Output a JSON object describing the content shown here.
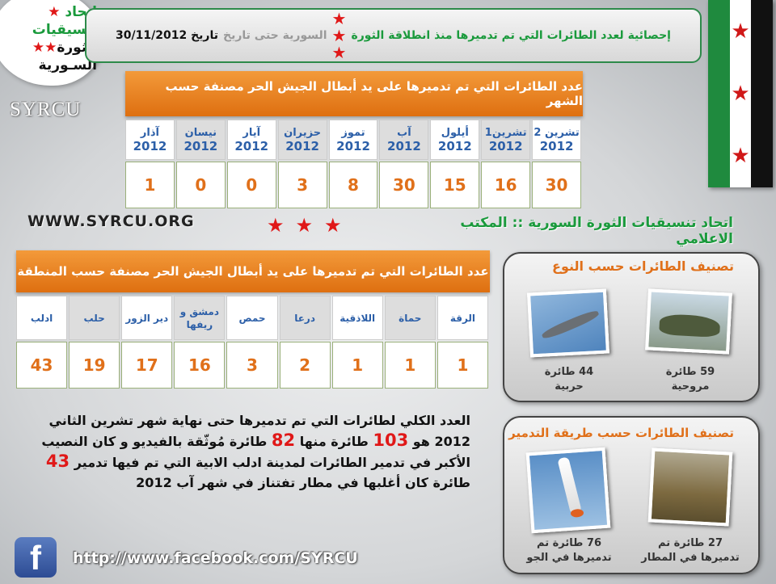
{
  "logo": {
    "line1": "اتحاد",
    "line2": "تنسيقيات",
    "line3": "الثورة",
    "line4": "السـورية",
    "latin": "SYRCU"
  },
  "banner": {
    "part1": "إحصائية لعدد الطائرات التي تم تدميرها منذ انطلاقة الثورة",
    "part2": "السورية حتى تاريخ",
    "part3": "تاريخ 30/11/2012"
  },
  "monthly": {
    "title": "عدد الطائرات التي تم تدميرها على يد أبطال الجيش الحر مصنفة حسب الشهر",
    "columns": [
      {
        "month": "آذار",
        "year": "2012",
        "value": "1"
      },
      {
        "month": "نيسان",
        "year": "2012",
        "value": "0"
      },
      {
        "month": "آيار",
        "year": "2012",
        "value": "0"
      },
      {
        "month": "حزيران",
        "year": "2012",
        "value": "3"
      },
      {
        "month": "تموز",
        "year": "2012",
        "value": "8"
      },
      {
        "month": "آب",
        "year": "2012",
        "value": "30"
      },
      {
        "month": "أيلول",
        "year": "2012",
        "value": "15"
      },
      {
        "month": "تشرين1",
        "year": "2012",
        "value": "16"
      },
      {
        "month": "تشرين 2",
        "year": "2012",
        "value": "30"
      }
    ]
  },
  "website": "WWW.SYRCU.ORG",
  "office": "اتحاد تنسيقيات الثورة السورية :: المكتب الاعلامي",
  "regional": {
    "title": "عدد الطائرات التي تم تدميرها على يد أبطال الجيش الحر مصنفة حسب المنطقة",
    "columns": [
      {
        "region": "ادلب",
        "value": "43"
      },
      {
        "region": "حلب",
        "value": "19"
      },
      {
        "region": "دير الزور",
        "value": "17"
      },
      {
        "region": "دمشق و ريفها",
        "value": "16"
      },
      {
        "region": "حمص",
        "value": "3"
      },
      {
        "region": "درعا",
        "value": "2"
      },
      {
        "region": "اللاذقية",
        "value": "1"
      },
      {
        "region": "حماة",
        "value": "1"
      },
      {
        "region": "الرقة",
        "value": "1"
      }
    ]
  },
  "by_type": {
    "title": "تصنيف الطائرات حسب النوع",
    "jets": {
      "line1": "44 طائرة",
      "line2": "حربية"
    },
    "helicopters": {
      "line1": "59 طائرة",
      "line2": "مروحية"
    }
  },
  "by_method": {
    "title": "تصنيف الطائرات حسب طريقة التدمير",
    "air": {
      "line1": "76 طائرة تم",
      "line2": "تدميرها في الجو"
    },
    "airport": {
      "line1": "27 طائرة تم",
      "line2": "تدميرها في المطار"
    }
  },
  "summary": {
    "t1": "العدد الكلي لطائرات التي تم تدميرها حتى نهاية شهر تشرين الثاني 2012 هو ",
    "n1": "103",
    "t2": " طائرة منها ",
    "n2": "82",
    "t3": " طائرة مُوثّقة بالفيديو و كان النصيب الأكبر في تدمير الطائرات لمدينة ادلب الابية التي تم فيها تدمير ",
    "n3": "43",
    "t4": " طائرة كان أغلبها في مطار تفتناز في شهر آب 2012"
  },
  "facebook_url": "http://www.facebook.com/SYRCU",
  "colors": {
    "accent_orange": "#e0701a",
    "green": "#1a9a3c",
    "red": "#e01818",
    "label_blue": "#2c5fa8"
  }
}
